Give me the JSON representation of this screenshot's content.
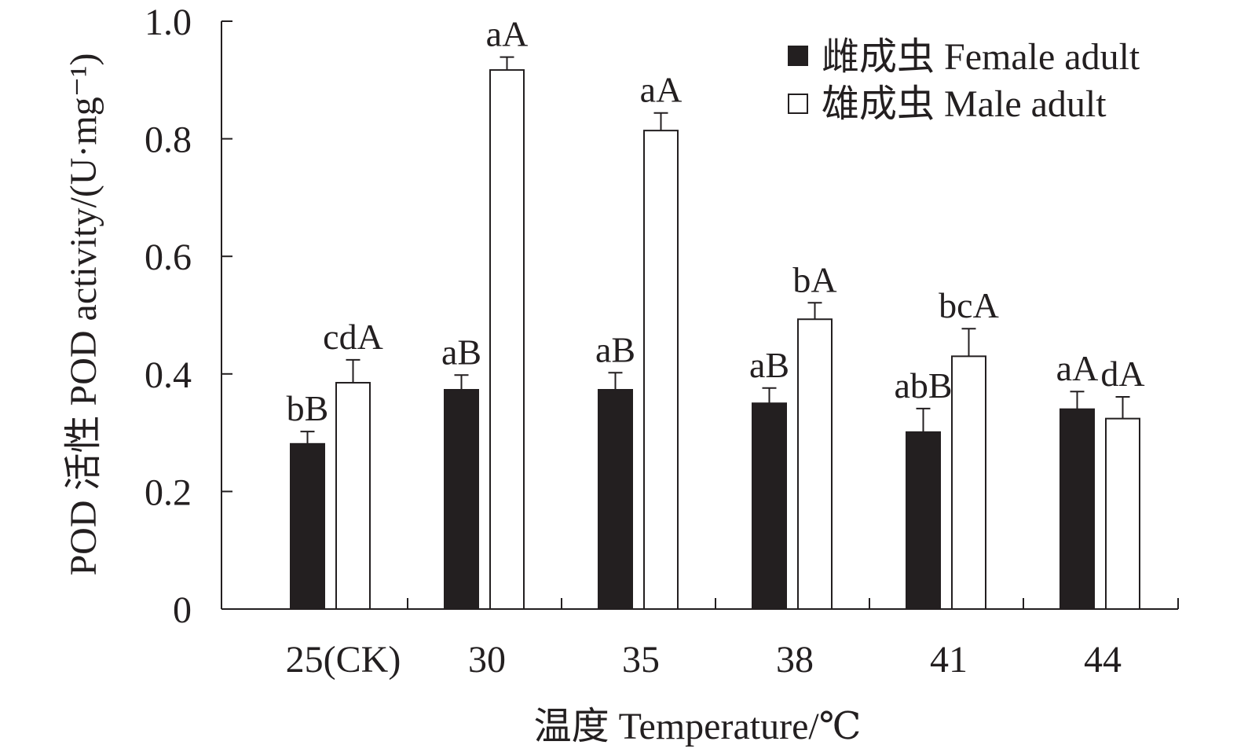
{
  "chart_data": {
    "type": "bar",
    "title": "",
    "xlabel": "温度 Temperature/℃",
    "ylabel": "POD 活性 POD activity/(U·mg⁻¹)",
    "ylim": [
      0,
      1.0
    ],
    "yticks": [
      "0",
      "0.2",
      "0.4",
      "0.6",
      "0.8",
      "1.0"
    ],
    "ytick_values": [
      0,
      0.2,
      0.4,
      0.6,
      0.8,
      1.0
    ],
    "categories": [
      "25(CK)",
      "30",
      "35",
      "38",
      "41",
      "44"
    ],
    "legend_position": "top-right",
    "series": [
      {
        "name": "雌成虫 Female adult",
        "fill": "#231f20",
        "values": [
          0.281,
          0.373,
          0.373,
          0.35,
          0.301,
          0.34
        ],
        "errors": [
          0.021,
          0.025,
          0.029,
          0.026,
          0.04,
          0.03
        ],
        "labels": [
          "bB",
          "aB",
          "aB",
          "aB",
          "abB",
          "aA"
        ]
      },
      {
        "name": "雄成虫 Male adult",
        "fill": "#ffffff",
        "values": [
          0.385,
          0.917,
          0.814,
          0.493,
          0.43,
          0.324
        ],
        "errors": [
          0.039,
          0.022,
          0.03,
          0.028,
          0.047,
          0.037
        ],
        "labels": [
          "cdA",
          "aA",
          "aA",
          "bA",
          "bcA",
          "dA"
        ]
      }
    ],
    "grid": false
  }
}
